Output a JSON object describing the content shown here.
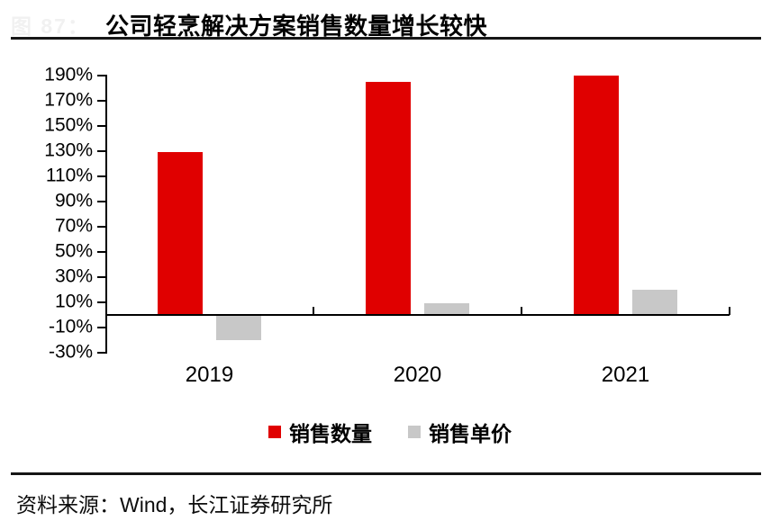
{
  "figure": {
    "faint_label": "图 87：",
    "title": "公司轻烹解决方案销售数量增长较快",
    "source": "资料来源：Wind，长江证券研究所"
  },
  "chart_data": {
    "type": "bar",
    "title": "公司轻烹解决方案销售数量增长较快",
    "categories": [
      "2019",
      "2020",
      "2021"
    ],
    "series": [
      {
        "name": "销售数量",
        "color": "#e00000",
        "values": [
          129,
          185,
          190
        ]
      },
      {
        "name": "销售单价",
        "color": "#c8c8c8",
        "values": [
          -20,
          9,
          20
        ]
      }
    ],
    "unit": "percent",
    "y_axis": {
      "min": -30,
      "max": 190,
      "step": 20
    },
    "y_tick_labels": [
      "190%",
      "170%",
      "150%",
      "130%",
      "110%",
      "90%",
      "70%",
      "50%",
      "30%",
      "10%",
      "-10%",
      "-30%"
    ],
    "legend_position": "bottom",
    "grid": false
  }
}
